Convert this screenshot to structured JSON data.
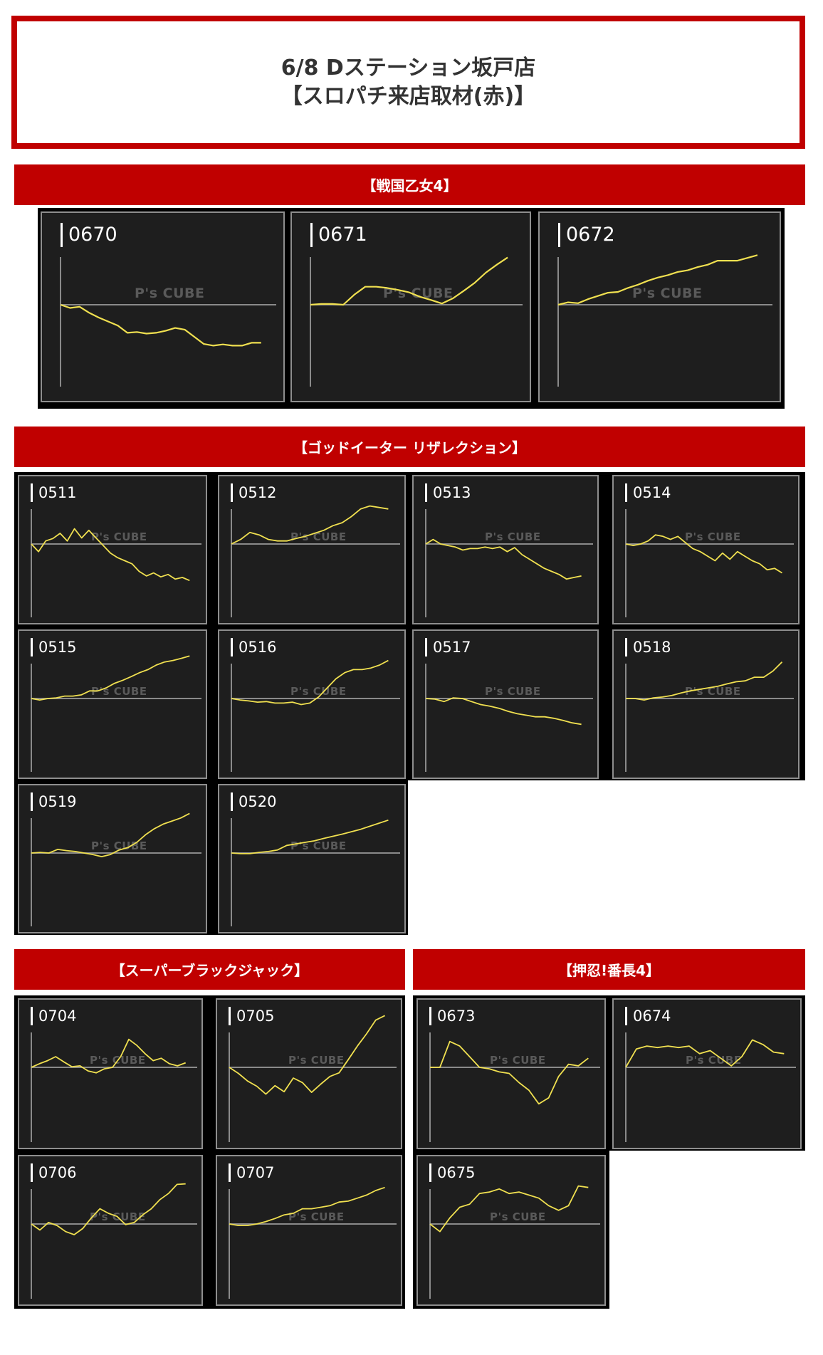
{
  "header": {
    "line1": "6/8 Dステーション坂戸店",
    "line2": "【スロパチ来店取材(赤)】"
  },
  "watermark": "P's CUBE",
  "colors": {
    "accent": "#c00000",
    "line": "#f0e050",
    "axis": "#8a8a8a",
    "card_bg": "#1e1e1e"
  },
  "sections": [
    {
      "title": "【戦国乙女4】",
      "charts": [
        {
          "id": "0670",
          "values": [
            0,
            -0.08,
            -0.05,
            -0.2,
            -0.32,
            -0.42,
            -0.52,
            -0.7,
            -0.68,
            -0.72,
            -0.7,
            -0.65,
            -0.58,
            -0.62,
            -0.8,
            -0.98,
            -1.02,
            -0.99,
            -1.02,
            -1.02,
            -0.95,
            -0.95
          ]
        },
        {
          "id": "0671",
          "values": [
            0,
            0.02,
            0.02,
            0.0,
            0.25,
            0.45,
            0.45,
            0.42,
            0.37,
            0.31,
            0.2,
            0.12,
            0.03,
            0.16,
            0.35,
            0.55,
            0.8,
            1.0,
            1.18
          ]
        },
        {
          "id": "0672",
          "values": [
            0,
            0.06,
            0.04,
            0.14,
            0.22,
            0.3,
            0.32,
            0.42,
            0.5,
            0.6,
            0.68,
            0.74,
            0.82,
            0.86,
            0.94,
            1.0,
            1.1,
            1.1,
            1.1,
            1.17,
            1.24
          ]
        }
      ]
    },
    {
      "title": "【ゴッドイーター リザレクション】",
      "charts": [
        {
          "id": "0511",
          "values": [
            0,
            -0.25,
            0.1,
            0.18,
            0.35,
            0.1,
            0.5,
            0.2,
            0.45,
            0.2,
            -0.05,
            -0.3,
            -0.45,
            -0.55,
            -0.65,
            -0.9,
            -1.05,
            -0.95,
            -1.08,
            -1.0,
            -1.15,
            -1.1,
            -1.2
          ]
        },
        {
          "id": "0512",
          "values": [
            0,
            0.15,
            0.38,
            0.3,
            0.15,
            0.1,
            0.1,
            0.18,
            0.25,
            0.35,
            0.45,
            0.6,
            0.7,
            0.9,
            1.15,
            1.25,
            1.2,
            1.15
          ]
        },
        {
          "id": "0513",
          "values": [
            0,
            0.15,
            0.0,
            -0.05,
            -0.1,
            -0.2,
            -0.15,
            -0.15,
            -0.1,
            -0.15,
            -0.1,
            -0.25,
            -0.12,
            -0.35,
            -0.5,
            -0.65,
            -0.8,
            -0.9,
            -1.0,
            -1.15,
            -1.1,
            -1.05
          ]
        },
        {
          "id": "0514",
          "values": [
            0,
            -0.05,
            0.0,
            0.1,
            0.3,
            0.25,
            0.15,
            0.25,
            0.05,
            -0.15,
            -0.25,
            -0.4,
            -0.55,
            -0.3,
            -0.5,
            -0.25,
            -0.4,
            -0.55,
            -0.65,
            -0.85,
            -0.8,
            -0.95
          ]
        },
        {
          "id": "0515",
          "values": [
            0,
            -0.05,
            0.0,
            0.02,
            0.08,
            0.08,
            0.12,
            0.25,
            0.25,
            0.35,
            0.5,
            0.6,
            0.72,
            0.85,
            0.95,
            1.1,
            1.2,
            1.25,
            1.32,
            1.4
          ]
        },
        {
          "id": "0516",
          "values": [
            0,
            -0.05,
            -0.08,
            -0.12,
            -0.1,
            -0.15,
            -0.15,
            -0.12,
            -0.2,
            -0.15,
            0.05,
            0.35,
            0.65,
            0.85,
            0.95,
            0.95,
            1.0,
            1.1,
            1.25
          ]
        },
        {
          "id": "0517",
          "values": [
            0,
            -0.02,
            -0.1,
            0.02,
            0.0,
            -0.1,
            -0.2,
            -0.25,
            -0.32,
            -0.42,
            -0.5,
            -0.55,
            -0.6,
            -0.6,
            -0.65,
            -0.72,
            -0.8,
            -0.85
          ]
        },
        {
          "id": "0518",
          "values": [
            0,
            0.0,
            -0.05,
            0.02,
            0.05,
            0.1,
            0.18,
            0.25,
            0.3,
            0.35,
            0.4,
            0.48,
            0.55,
            0.58,
            0.7,
            0.7,
            0.9,
            1.2
          ]
        },
        {
          "id": "0519",
          "values": [
            0,
            0.02,
            0.0,
            0.12,
            0.08,
            0.05,
            0.0,
            -0.05,
            -0.12,
            -0.05,
            0.1,
            0.18,
            0.35,
            0.6,
            0.8,
            0.95,
            1.05,
            1.15,
            1.3
          ]
        },
        {
          "id": "0520",
          "values": [
            0,
            -0.02,
            -0.02,
            0.02,
            0.05,
            0.1,
            0.25,
            0.3,
            0.35,
            0.4,
            0.48,
            0.55,
            0.62,
            0.7,
            0.78,
            0.88,
            0.98,
            1.08
          ]
        }
      ]
    },
    {
      "title": "【スーパーブラックジャック】",
      "charts": [
        {
          "id": "0704",
          "values": [
            0,
            0.12,
            0.22,
            0.35,
            0.18,
            0.02,
            0.05,
            -0.12,
            -0.18,
            -0.05,
            0.0,
            0.35,
            0.92,
            0.72,
            0.45,
            0.22,
            0.3,
            0.12,
            0.05,
            0.15
          ]
        },
        {
          "id": "0705",
          "values": [
            0,
            -0.2,
            -0.45,
            -0.62,
            -0.88,
            -0.6,
            -0.8,
            -0.35,
            -0.5,
            -0.82,
            -0.55,
            -0.3,
            -0.18,
            0.25,
            0.7,
            1.1,
            1.55,
            1.7
          ]
        },
        {
          "id": "0706",
          "values": [
            0,
            -0.2,
            0.05,
            -0.05,
            -0.25,
            -0.35,
            -0.15,
            0.2,
            0.5,
            0.35,
            0.25,
            -0.02,
            0.05,
            0.3,
            0.5,
            0.8,
            1.0,
            1.3,
            1.32
          ]
        },
        {
          "id": "0707",
          "values": [
            0,
            -0.05,
            -0.05,
            0.0,
            0.08,
            0.18,
            0.3,
            0.35,
            0.5,
            0.5,
            0.55,
            0.6,
            0.72,
            0.75,
            0.85,
            0.95,
            1.1,
            1.2
          ]
        }
      ]
    },
    {
      "title": "【押忍!番長4】",
      "charts": [
        {
          "id": "0673",
          "values": [
            0,
            0.0,
            0.85,
            0.7,
            0.35,
            0.0,
            -0.05,
            -0.15,
            -0.2,
            -0.5,
            -0.75,
            -1.2,
            -1.0,
            -0.3,
            0.1,
            0.05,
            0.3
          ]
        },
        {
          "id": "0674",
          "values": [
            0,
            0.6,
            0.7,
            0.65,
            0.7,
            0.65,
            0.7,
            0.45,
            0.55,
            0.3,
            0.05,
            0.35,
            0.9,
            0.75,
            0.5,
            0.45
          ]
        },
        {
          "id": "0675",
          "values": [
            0,
            -0.25,
            0.2,
            0.55,
            0.65,
            1.0,
            1.05,
            1.15,
            1.0,
            1.05,
            0.95,
            0.85,
            0.6,
            0.45,
            0.6,
            1.25,
            1.2
          ]
        }
      ]
    }
  ]
}
